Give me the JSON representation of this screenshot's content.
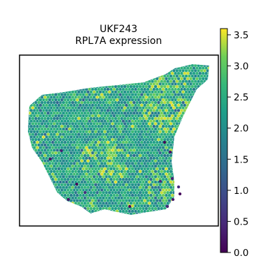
{
  "chart_data": {
    "type": "scatter",
    "title": "UKF243",
    "subtitle": "RPL7A expression",
    "xlabel": "",
    "ylabel": "",
    "grid": false,
    "legend": "none",
    "colorbar": {
      "colormap": "viridis",
      "range": [
        0.0,
        3.6
      ],
      "ticks": [
        0.0,
        0.5,
        1.0,
        1.5,
        2.0,
        2.5,
        3.0,
        3.5
      ],
      "tick_labels": [
        "0.0",
        "0.5",
        "1.0",
        "1.5",
        "2.0",
        "2.5",
        "3.0",
        "3.5"
      ],
      "placement": "right"
    },
    "tissue": {
      "spot_shape": "hexagonal grid",
      "typical_value_range": [
        1.8,
        2.8
      ],
      "high_value_regions": [
        "upper-right lobe",
        "center",
        "lower-right edge"
      ],
      "low_value_spots": [
        "lower-right edge",
        "scattered lower-left"
      ]
    },
    "sample_points": [
      {
        "x": 0.1,
        "y": 0.55,
        "v": 2.4
      },
      {
        "x": 0.25,
        "y": 0.65,
        "v": 2.1
      },
      {
        "x": 0.4,
        "y": 0.5,
        "v": 2.9
      },
      {
        "x": 0.55,
        "y": 0.62,
        "v": 2.2
      },
      {
        "x": 0.7,
        "y": 0.7,
        "v": 3.1
      },
      {
        "x": 0.85,
        "y": 0.8,
        "v": 2.6
      },
      {
        "x": 0.92,
        "y": 0.92,
        "v": 3.3
      },
      {
        "x": 0.78,
        "y": 0.35,
        "v": 1.8
      },
      {
        "x": 0.82,
        "y": 0.22,
        "v": 0.2
      },
      {
        "x": 0.6,
        "y": 0.2,
        "v": 2.7
      },
      {
        "x": 0.3,
        "y": 0.3,
        "v": 2.3
      },
      {
        "x": 0.22,
        "y": 0.15,
        "v": 0.4
      }
    ]
  }
}
